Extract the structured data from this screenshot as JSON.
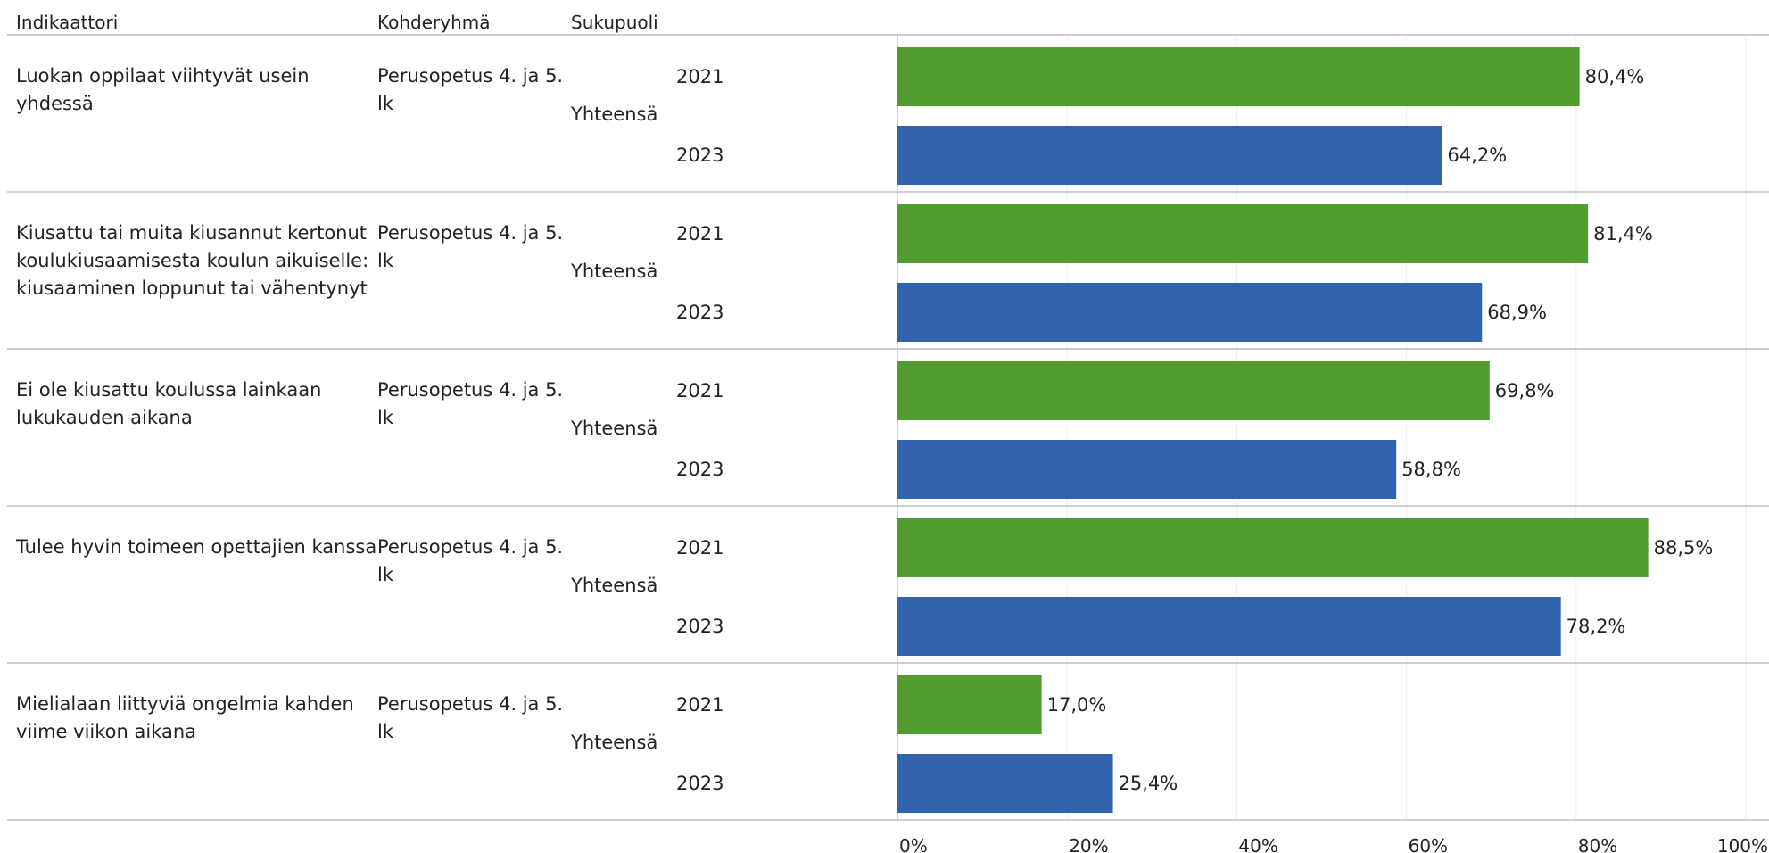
{
  "headers": {
    "indicator": "Indikaattori",
    "target_group": "Kohderyhmä",
    "gender": "Sukupuoli"
  },
  "chart_data": {
    "type": "bar",
    "orientation": "horizontal",
    "x_ticks": [
      "0%",
      "20%",
      "40%",
      "60%",
      "80%",
      "100%"
    ],
    "xlim": [
      0,
      100
    ],
    "grid": true,
    "series": [
      {
        "name": "2021",
        "color": "#529d30"
      },
      {
        "name": "2023",
        "color": "#3062ae"
      }
    ],
    "rows": [
      {
        "indicator": [
          "Luokan oppilaat viihtyvät usein",
          "yhdessä"
        ],
        "target_group": [
          "Perusopetus 4. ja 5.",
          "lk"
        ],
        "gender": "Yhteensä",
        "bars": [
          {
            "year": "2021",
            "value": 80.4,
            "label": "80,4%"
          },
          {
            "year": "2023",
            "value": 64.2,
            "label": "64,2%"
          }
        ]
      },
      {
        "indicator": [
          "Kiusattu tai muita kiusannut kertonut",
          "koulukiusaamisesta koulun aikuiselle:",
          "kiusaaminen loppunut tai vähentynyt"
        ],
        "target_group": [
          "Perusopetus 4. ja 5.",
          "lk"
        ],
        "gender": "Yhteensä",
        "bars": [
          {
            "year": "2021",
            "value": 81.4,
            "label": "81,4%"
          },
          {
            "year": "2023",
            "value": 68.9,
            "label": "68,9%"
          }
        ]
      },
      {
        "indicator": [
          "Ei ole kiusattu koulussa lainkaan",
          "lukukauden aikana"
        ],
        "target_group": [
          "Perusopetus 4. ja 5.",
          "lk"
        ],
        "gender": "Yhteensä",
        "bars": [
          {
            "year": "2021",
            "value": 69.8,
            "label": "69,8%"
          },
          {
            "year": "2023",
            "value": 58.8,
            "label": "58,8%"
          }
        ]
      },
      {
        "indicator": [
          "Tulee hyvin toimeen opettajien kanssa"
        ],
        "target_group": [
          "Perusopetus 4. ja 5.",
          "lk"
        ],
        "gender": "Yhteensä",
        "bars": [
          {
            "year": "2021",
            "value": 88.5,
            "label": "88,5%"
          },
          {
            "year": "2023",
            "value": 78.2,
            "label": "78,2%"
          }
        ]
      },
      {
        "indicator": [
          "Mielialaan liittyviä ongelmia kahden",
          "viime viikon aikana"
        ],
        "target_group": [
          "Perusopetus 4. ja 5.",
          "lk"
        ],
        "gender": "Yhteensä",
        "bars": [
          {
            "year": "2021",
            "value": 17.0,
            "label": "17,0%"
          },
          {
            "year": "2023",
            "value": 25.4,
            "label": "25,4%"
          }
        ]
      }
    ]
  }
}
